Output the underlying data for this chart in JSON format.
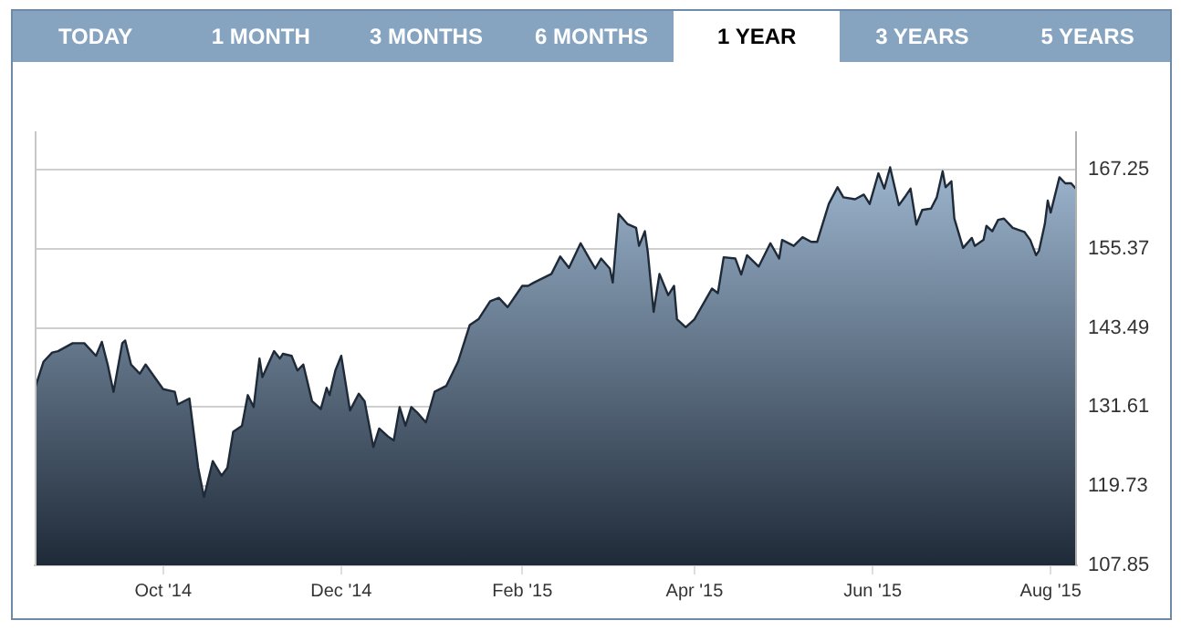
{
  "chart_data": {
    "type": "area",
    "annotations": [
      "TODAY",
      "1 MONTH",
      "3 MONTHS",
      "6 MONTHS",
      "1 YEAR",
      "3 YEARS",
      "5 YEARS"
    ],
    "x": [
      "2014-08-18",
      "2014-08-21",
      "2014-08-24",
      "2014-08-26",
      "2014-08-31",
      "2014-09-04",
      "2014-09-08",
      "2014-09-10",
      "2014-09-12",
      "2014-09-14",
      "2014-09-17",
      "2014-09-18",
      "2014-09-20",
      "2014-09-23",
      "2014-09-25",
      "2014-10-01",
      "2014-10-05",
      "2014-10-06",
      "2014-10-10",
      "2014-10-13",
      "2014-10-15",
      "2014-10-18",
      "2014-10-21",
      "2014-10-23",
      "2014-10-25",
      "2014-10-28",
      "2014-10-30",
      "2014-11-01",
      "2014-11-03",
      "2014-11-04",
      "2014-11-08",
      "2014-11-10",
      "2014-11-11",
      "2014-11-14",
      "2014-11-16",
      "2014-11-18",
      "2014-11-21",
      "2014-11-24",
      "2014-11-26",
      "2014-11-27",
      "2014-11-29",
      "2014-12-01",
      "2014-12-04",
      "2014-12-07",
      "2014-12-09",
      "2014-12-12",
      "2014-12-14",
      "2014-12-17",
      "2014-12-19",
      "2014-12-21",
      "2014-12-23",
      "2014-12-25",
      "2014-12-27",
      "2014-12-30",
      "2015-01-02",
      "2015-01-06",
      "2015-01-10",
      "2015-01-14",
      "2015-01-17",
      "2015-01-21",
      "2015-01-24",
      "2015-01-27",
      "2015-02-01",
      "2015-02-03",
      "2015-02-05",
      "2015-02-11",
      "2015-02-14",
      "2015-02-17",
      "2015-02-21",
      "2015-02-24",
      "2015-02-26",
      "2015-02-28",
      "2015-03-03",
      "2015-03-04",
      "2015-03-06",
      "2015-03-09",
      "2015-03-12",
      "2015-03-13",
      "2015-03-15",
      "2015-03-16",
      "2015-03-18",
      "2015-03-20",
      "2015-03-23",
      "2015-03-25",
      "2015-03-26",
      "2015-03-29",
      "2015-04-01",
      "2015-04-07",
      "2015-04-09",
      "2015-04-11",
      "2015-04-15",
      "2015-04-17",
      "2015-04-19",
      "2015-04-23",
      "2015-04-27",
      "2015-04-30",
      "2015-05-01",
      "2015-05-05",
      "2015-05-08",
      "2015-05-11",
      "2015-05-13",
      "2015-05-17",
      "2015-05-20",
      "2015-05-22",
      "2015-05-26",
      "2015-05-29",
      "2015-05-31",
      "2015-06-03",
      "2015-06-05",
      "2015-06-07",
      "2015-06-10",
      "2015-06-12",
      "2015-06-14",
      "2015-06-16",
      "2015-06-18",
      "2015-06-21",
      "2015-06-23",
      "2015-06-25",
      "2015-06-26",
      "2015-06-28",
      "2015-06-29",
      "2015-07-02",
      "2015-07-05",
      "2015-07-06",
      "2015-07-09",
      "2015-07-10",
      "2015-07-12",
      "2015-07-14",
      "2015-07-16",
      "2015-07-19",
      "2015-07-23",
      "2015-07-25",
      "2015-07-27",
      "2015-07-28",
      "2015-07-30",
      "2015-07-31",
      "2015-08-01",
      "2015-08-04",
      "2015-08-06",
      "2015-08-08",
      "2015-08-10"
    ],
    "series": [
      {
        "color": "#1f2a38",
        "values": [
          134.3,
          138.4,
          139.8,
          140.0,
          141.2,
          141.2,
          139.3,
          141.4,
          138.0,
          133.9,
          141.2,
          141.6,
          138.0,
          136.6,
          138.0,
          134.3,
          133.9,
          132.0,
          132.9,
          122.5,
          118.1,
          123.5,
          121.3,
          122.5,
          127.9,
          128.8,
          133.4,
          131.6,
          138.9,
          136.1,
          140.0,
          138.9,
          139.6,
          139.3,
          137.1,
          138.0,
          132.5,
          131.3,
          134.5,
          133.4,
          137.1,
          139.3,
          131.1,
          133.6,
          132.5,
          125.6,
          128.4,
          127.2,
          126.6,
          131.6,
          128.8,
          131.6,
          130.8,
          129.3,
          133.9,
          134.8,
          138.4,
          143.9,
          144.8,
          147.5,
          148.0,
          146.6,
          149.8,
          149.8,
          150.3,
          151.6,
          154.2,
          152.5,
          156.2,
          153.9,
          152.4,
          153.9,
          152.4,
          150.3,
          160.6,
          159.1,
          158.5,
          155.8,
          158.0,
          154.9,
          145.9,
          151.6,
          148.4,
          149.8,
          144.8,
          143.6,
          144.8,
          149.4,
          148.7,
          154.1,
          153.9,
          151.5,
          154.4,
          152.7,
          156.2,
          153.9,
          156.7,
          155.8,
          157.1,
          156.4,
          156.4,
          162.1,
          164.6,
          163.1,
          162.8,
          163.5,
          162.1,
          166.7,
          164.4,
          167.6,
          161.9,
          163.1,
          164.4,
          159.0,
          161.2,
          161.4,
          163.1,
          167.0,
          164.6,
          165.5,
          159.9,
          155.5,
          157.0,
          155.8,
          156.7,
          158.8,
          158.0,
          159.7,
          159.9,
          158.5,
          157.9,
          156.7,
          154.4,
          155.1,
          159.1,
          162.6,
          160.8,
          166.1,
          165.2,
          165.2,
          164.2
        ]
      }
    ],
    "xlim": [
      "2014-08-18",
      "2015-08-10"
    ],
    "xticks": [
      {
        "value": "2014-10-01",
        "label": "Oct '14"
      },
      {
        "value": "2014-12-01",
        "label": "Dec '14"
      },
      {
        "value": "2015-02-01",
        "label": "Feb '15"
      },
      {
        "value": "2015-04-01",
        "label": "Apr '15"
      },
      {
        "value": "2015-06-01",
        "label": "Jun '15"
      },
      {
        "value": "2015-08-01",
        "label": "Aug '15"
      }
    ],
    "ylim": [
      107.85,
      173.0
    ],
    "yticks": [
      107.85,
      119.73,
      131.61,
      143.49,
      155.37,
      167.25
    ],
    "grid": "y",
    "legend": false
  }
}
